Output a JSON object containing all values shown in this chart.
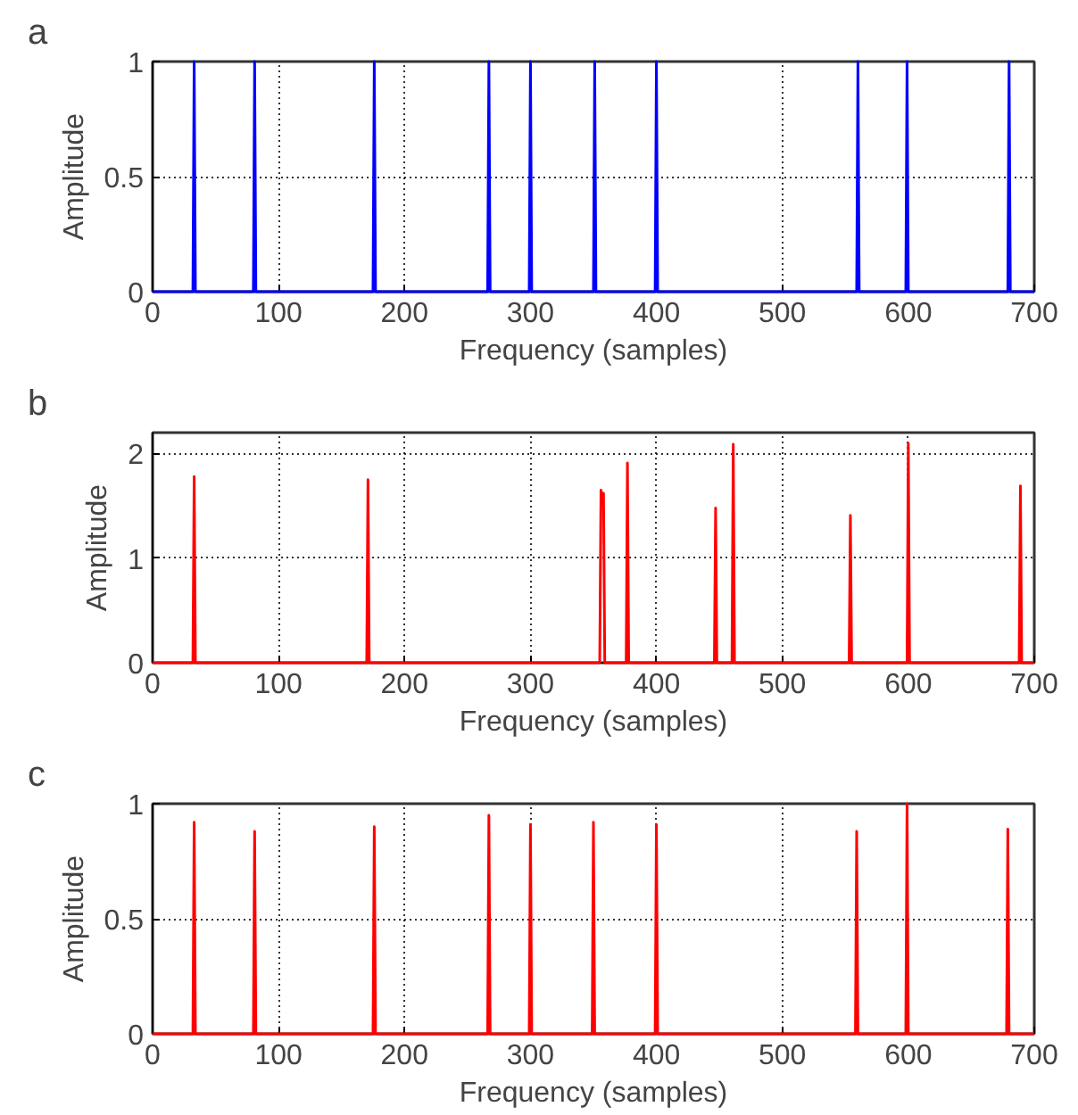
{
  "chart_data": [
    {
      "type": "line",
      "title": "a",
      "xlabel": "Frequency (samples)",
      "ylabel": "Amplitude",
      "xlim": [
        0,
        700
      ],
      "ylim": [
        0,
        1
      ],
      "xticks": [
        0,
        100,
        200,
        300,
        400,
        500,
        600,
        700
      ],
      "yticks": [
        0,
        0.5,
        1
      ],
      "grid": true,
      "series": [
        {
          "color": "#0000ff",
          "x": [
            0,
            32,
            33,
            34,
            80,
            81,
            82,
            175,
            176,
            177,
            266,
            267,
            268,
            299,
            300,
            301,
            350,
            351,
            352,
            399,
            400,
            401,
            559,
            560,
            561,
            598,
            599,
            600,
            679,
            680,
            681,
            700
          ],
          "values": [
            0,
            0,
            1,
            0,
            0,
            1,
            0,
            0,
            1,
            0,
            0,
            1,
            0,
            0,
            1,
            0,
            0,
            1,
            0,
            0,
            1,
            0,
            0,
            1,
            0,
            0,
            1,
            0,
            0,
            1,
            0,
            0
          ]
        }
      ]
    },
    {
      "type": "line",
      "title": "b",
      "xlabel": "Frequency (samples)",
      "ylabel": "Amplitude",
      "xlim": [
        0,
        700
      ],
      "ylim": [
        0,
        2.2
      ],
      "xticks": [
        0,
        100,
        200,
        300,
        400,
        500,
        600,
        700
      ],
      "yticks": [
        0,
        1,
        2
      ],
      "grid": true,
      "series": [
        {
          "color": "#ff0000",
          "x": [
            0,
            32,
            33,
            34,
            170,
            171,
            172,
            355,
            356,
            357,
            358,
            359,
            376,
            377,
            378,
            446,
            447,
            448,
            460,
            461,
            462,
            553,
            554,
            555,
            599,
            600,
            601,
            688,
            689,
            690,
            700
          ],
          "values": [
            0,
            0,
            1.78,
            0,
            0,
            1.75,
            0,
            0,
            1.65,
            1.6,
            1.62,
            0,
            0,
            1.91,
            0,
            0,
            1.48,
            0,
            0,
            2.09,
            0,
            0,
            1.41,
            0,
            0,
            2.1,
            0,
            0,
            1.69,
            0,
            0
          ]
        }
      ]
    },
    {
      "type": "line",
      "title": "c",
      "xlabel": "Frequency (samples)",
      "ylabel": "Amplitude",
      "xlim": [
        0,
        700
      ],
      "ylim": [
        0,
        1
      ],
      "xticks": [
        0,
        100,
        200,
        300,
        400,
        500,
        600,
        700
      ],
      "yticks": [
        0,
        0.5,
        1
      ],
      "grid": true,
      "series": [
        {
          "color": "#ff0000",
          "x": [
            0,
            32,
            33,
            34,
            80,
            81,
            82,
            175,
            176,
            177,
            266,
            267,
            268,
            299,
            300,
            301,
            349,
            350,
            351,
            399,
            400,
            401,
            558,
            559,
            560,
            598,
            599,
            600,
            678,
            679,
            680,
            700
          ],
          "values": [
            0,
            0,
            0.92,
            0,
            0,
            0.88,
            0,
            0,
            0.9,
            0,
            0,
            0.95,
            0,
            0,
            0.91,
            0,
            0,
            0.92,
            0,
            0,
            0.91,
            0,
            0,
            0.88,
            0,
            0,
            1,
            0,
            0,
            0.89,
            0,
            0
          ]
        }
      ]
    }
  ]
}
